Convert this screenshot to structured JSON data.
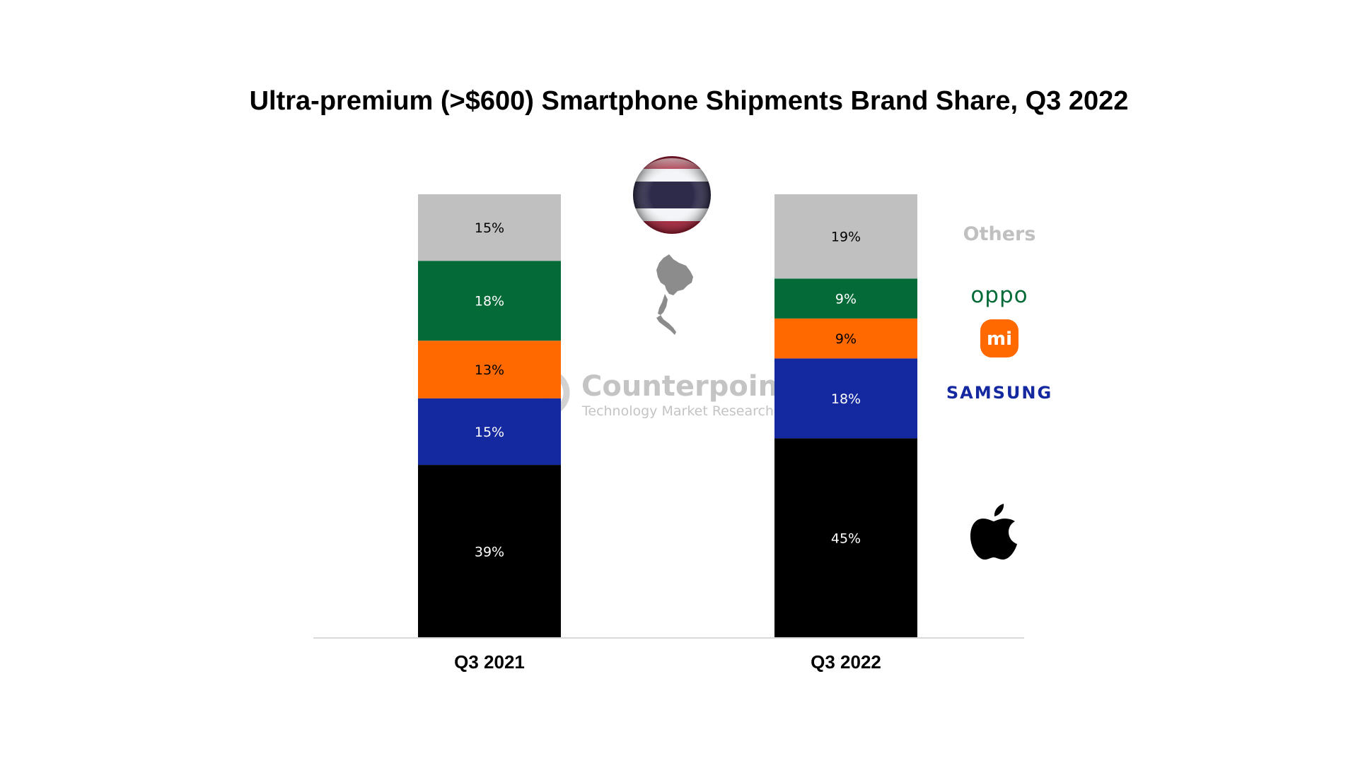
{
  "chart_data": {
    "type": "bar",
    "stacked": true,
    "title": "Ultra-premium (>$600) Smartphone Shipments Brand Share, Q3 2022",
    "categories": [
      "Q3 2021",
      "Q3 2022"
    ],
    "ylim": [
      0,
      100
    ],
    "value_format": "{v}%",
    "series": [
      {
        "key": "apple",
        "color": "#000000",
        "label_color": "#ffffff",
        "values": [
          39,
          45
        ]
      },
      {
        "key": "samsung",
        "color": "#1428a0",
        "label_color": "#ffffff",
        "values": [
          15,
          18
        ]
      },
      {
        "key": "xiaomi",
        "color": "#ff6900",
        "label_color": "#000000",
        "values": [
          13,
          9
        ]
      },
      {
        "key": "oppo",
        "color": "#046a38",
        "label_color": "#ffffff",
        "values": [
          18,
          9
        ]
      },
      {
        "key": "others",
        "color": "#c0c0c0",
        "label_color": "#000000",
        "values": [
          15,
          19
        ]
      }
    ],
    "legend_placement": "right",
    "grid": false
  },
  "legend": {
    "others_text": "Others",
    "oppo_logo_text": "oppo",
    "xiaomi_logo_text": "mi",
    "samsung_logo_text": "SAMSUNG",
    "apple_icon": "apple-icon",
    "colors": {
      "others": "#c0c0c0",
      "oppo": "#046a38",
      "xiaomi": "#ff6900",
      "samsung": "#1428a0",
      "apple": "#000000"
    }
  },
  "decorations": {
    "flag_icon": "thailand-flag-icon",
    "map_icon": "thailand-map-icon"
  },
  "watermark": {
    "brand": "Counterpoint",
    "tagline": "Technology Market Research",
    "logo_icon": "counterpoint-logo-icon"
  }
}
